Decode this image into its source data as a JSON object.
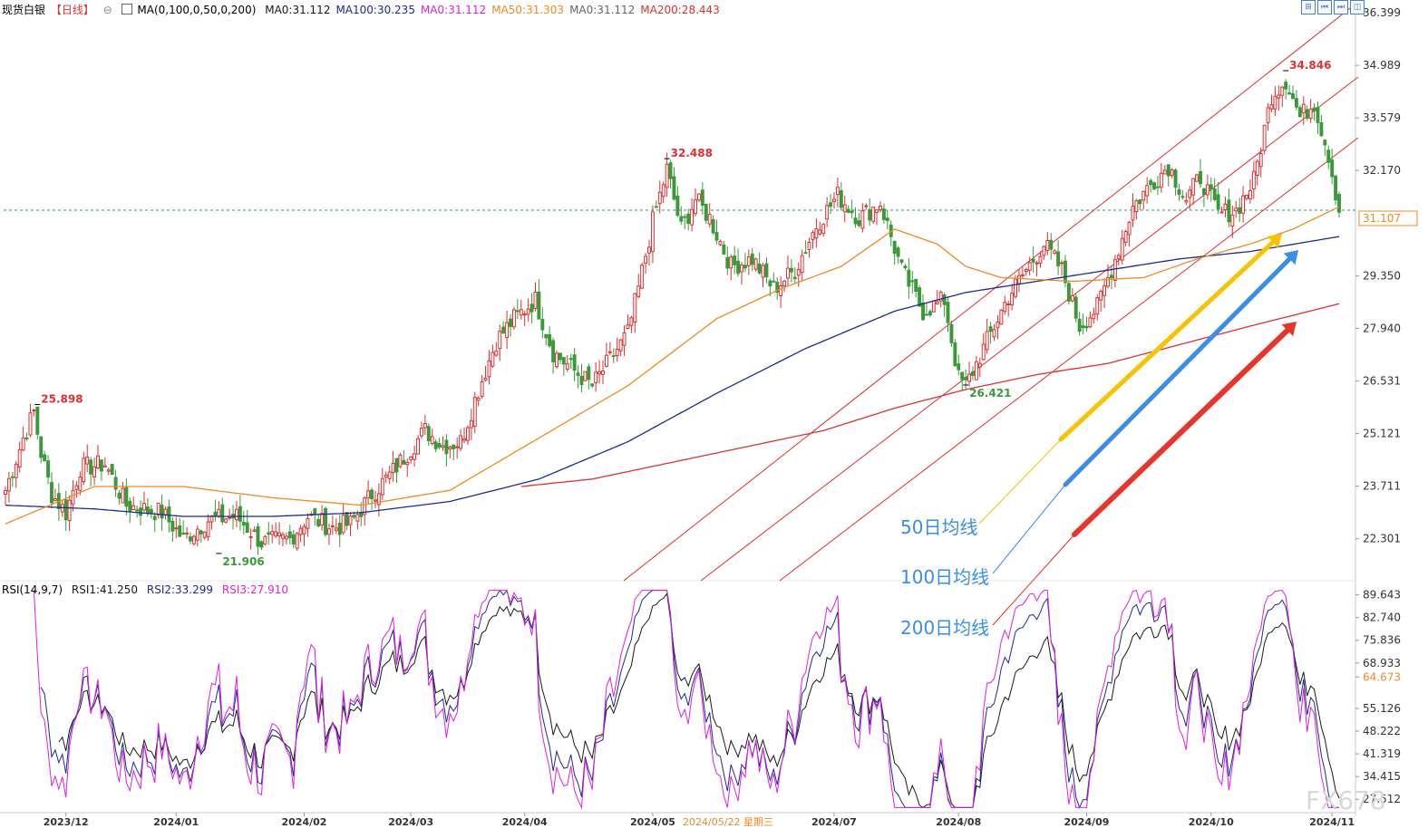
{
  "header": {
    "title": "现货白银",
    "period": "【日线】",
    "settings_glyph": "⊖",
    "ma_icon": "bar-chart-icon",
    "ma_params": "MA(0,100,0,50,0,200)",
    "ma_values": [
      {
        "label": "MA0:31.112",
        "color": "#1a1a1a"
      },
      {
        "label": "MA100:30.235",
        "color": "#1c2a9a"
      },
      {
        "label": "MA0:31.112",
        "color": "#e020e0"
      },
      {
        "label": "MA50:31.303",
        "color": "#f08a20"
      },
      {
        "label": "MA0:31.112",
        "color": "#666666"
      },
      {
        "label": "MA200:28.443",
        "color": "#e03030"
      }
    ]
  },
  "toolbar": {
    "buttons": [
      {
        "name": "expand-icon",
        "glyph": "⊞"
      },
      {
        "name": "prev-icon",
        "glyph": "⏮"
      },
      {
        "name": "next-icon",
        "glyph": "⏭"
      },
      {
        "name": "split-icon",
        "glyph": "◫"
      }
    ]
  },
  "rsi_header": {
    "params": "RSI(14,9,7)",
    "rsi1": "RSI1:41.250",
    "rsi2": "RSI2:33.299",
    "rsi3": "RSI3:27.910"
  },
  "watermark": "FX678",
  "colors": {
    "up": "#e03030",
    "down": "#3a9a3a",
    "ma50": "#f08a20",
    "ma100": "#1c2a9a",
    "ma200": "#e03030",
    "rsi1": "#1a1a1a",
    "rsi2": "#1c2a9a",
    "rsi3": "#e020e0",
    "arrow50": "#f8c400",
    "arrow100": "#3a8ee8",
    "arrow200": "#e8342a"
  },
  "chart_data": [
    {
      "type": "candlestick",
      "title": "现货白银 日线",
      "price_axis_ticks": [
        "36.399",
        "34.989",
        "33.579",
        "32.170",
        "29.350",
        "27.940",
        "26.531",
        "25.121",
        "23.711",
        "22.301"
      ],
      "price_range": [
        21.2,
        36.4
      ],
      "current_price_label": "31.107",
      "current_price": 31.107,
      "x_ticks": [
        "2023/12",
        "2024/01",
        "2024/02",
        "2024/03",
        "2024/04",
        "2024/05",
        "2024/07",
        "2024/08",
        "2024/09",
        "2024/10",
        "2024/11"
      ],
      "x_cursor_label": "2024/05/22 星期三",
      "annotations": [
        {
          "text": "25.898",
          "value": 25.898,
          "kind": "high"
        },
        {
          "text": "21.906",
          "value": 21.906,
          "kind": "low"
        },
        {
          "text": "32.488",
          "value": 32.488,
          "kind": "high"
        },
        {
          "text": "26.421",
          "value": 26.421,
          "kind": "low"
        },
        {
          "text": "34.846",
          "value": 34.846,
          "kind": "high"
        }
      ],
      "price_path_anchors": [
        [
          0,
          23.6
        ],
        [
          5,
          25.0
        ],
        [
          8,
          25.7
        ],
        [
          10,
          24.6
        ],
        [
          13,
          23.5
        ],
        [
          17,
          23.0
        ],
        [
          21,
          24.2
        ],
        [
          28,
          24.3
        ],
        [
          34,
          23.2
        ],
        [
          44,
          23.0
        ],
        [
          50,
          22.3
        ],
        [
          57,
          22.8
        ],
        [
          65,
          22.9
        ],
        [
          72,
          22.2
        ],
        [
          80,
          22.3
        ],
        [
          85,
          22.9
        ],
        [
          92,
          22.6
        ],
        [
          97,
          22.7
        ],
        [
          103,
          23.5
        ],
        [
          108,
          24.0
        ],
        [
          113,
          24.6
        ],
        [
          118,
          25.2
        ],
        [
          123,
          24.8
        ],
        [
          128,
          24.9
        ],
        [
          133,
          26.3
        ],
        [
          138,
          27.6
        ],
        [
          143,
          28.2
        ],
        [
          149,
          28.7
        ],
        [
          154,
          27.3
        ],
        [
          160,
          26.8
        ],
        [
          165,
          26.4
        ],
        [
          170,
          27.1
        ],
        [
          175,
          27.8
        ],
        [
          178,
          29.0
        ],
        [
          182,
          30.8
        ],
        [
          186,
          32.2
        ],
        [
          190,
          30.6
        ],
        [
          194,
          31.4
        ],
        [
          198,
          30.9
        ],
        [
          204,
          29.6
        ],
        [
          210,
          29.8
        ],
        [
          216,
          29.0
        ],
        [
          222,
          29.5
        ],
        [
          228,
          30.7
        ],
        [
          234,
          31.5
        ],
        [
          240,
          30.9
        ],
        [
          246,
          31.3
        ],
        [
          252,
          29.5
        ],
        [
          258,
          28.4
        ],
        [
          264,
          28.7
        ],
        [
          268,
          26.6
        ],
        [
          270,
          26.4
        ],
        [
          275,
          27.4
        ],
        [
          282,
          28.8
        ],
        [
          287,
          29.5
        ],
        [
          292,
          30.2
        ],
        [
          297,
          29.5
        ],
        [
          302,
          28.0
        ],
        [
          307,
          28.5
        ],
        [
          312,
          29.8
        ],
        [
          317,
          31.2
        ],
        [
          322,
          31.8
        ],
        [
          327,
          32.3
        ],
        [
          332,
          31.4
        ],
        [
          336,
          32.0
        ],
        [
          341,
          31.0
        ],
        [
          346,
          31.1
        ],
        [
          351,
          31.9
        ],
        [
          356,
          34.2
        ],
        [
          360,
          34.6
        ],
        [
          364,
          33.6
        ],
        [
          368,
          34.0
        ],
        [
          372,
          32.6
        ],
        [
          375,
          31.1
        ]
      ],
      "ma50_anchors": [
        [
          0,
          22.7
        ],
        [
          25,
          23.7
        ],
        [
          50,
          23.7
        ],
        [
          75,
          23.4
        ],
        [
          100,
          23.2
        ],
        [
          125,
          23.6
        ],
        [
          150,
          25.0
        ],
        [
          175,
          26.4
        ],
        [
          200,
          28.2
        ],
        [
          218,
          29.0
        ],
        [
          235,
          29.6
        ],
        [
          250,
          30.6
        ],
        [
          262,
          30.2
        ],
        [
          270,
          29.6
        ],
        [
          280,
          29.3
        ],
        [
          300,
          29.2
        ],
        [
          320,
          29.3
        ],
        [
          335,
          29.8
        ],
        [
          350,
          30.2
        ],
        [
          362,
          30.6
        ],
        [
          375,
          31.2
        ]
      ],
      "ma100_anchors": [
        [
          0,
          23.2
        ],
        [
          25,
          23.1
        ],
        [
          50,
          22.9
        ],
        [
          75,
          22.9
        ],
        [
          100,
          23.0
        ],
        [
          125,
          23.3
        ],
        [
          150,
          23.9
        ],
        [
          175,
          24.9
        ],
        [
          200,
          26.2
        ],
        [
          225,
          27.4
        ],
        [
          250,
          28.4
        ],
        [
          270,
          28.9
        ],
        [
          290,
          29.2
        ],
        [
          310,
          29.5
        ],
        [
          330,
          29.8
        ],
        [
          350,
          30.0
        ],
        [
          375,
          30.4
        ]
      ],
      "ma200_anchors": [
        [
          145,
          23.7
        ],
        [
          165,
          23.9
        ],
        [
          190,
          24.4
        ],
        [
          210,
          24.8
        ],
        [
          230,
          25.2
        ],
        [
          250,
          25.8
        ],
        [
          270,
          26.3
        ],
        [
          290,
          26.7
        ],
        [
          310,
          27.0
        ],
        [
          330,
          27.5
        ],
        [
          350,
          28.0
        ],
        [
          375,
          28.6
        ]
      ]
    },
    {
      "type": "line",
      "title": "RSI(14,9,7)",
      "series": [
        {
          "name": "RSI1",
          "last": 41.25
        },
        {
          "name": "RSI2",
          "last": 33.299
        },
        {
          "name": "RSI3",
          "last": 27.91
        }
      ],
      "axis_ticks": [
        "89.643",
        "82.740",
        "75.836",
        "68.933",
        "64.673",
        "55.126",
        "48.222",
        "41.319",
        "34.415",
        "27.512"
      ],
      "highlight_tick": "64.673",
      "range": [
        24,
        92
      ]
    }
  ],
  "annotations": {
    "ma_labels": [
      {
        "text": "50日均线",
        "color": "#3a8ee8"
      },
      {
        "text": "100日均线",
        "color": "#3a8ee8"
      },
      {
        "text": "200日均线",
        "color": "#3a8ee8"
      }
    ]
  }
}
